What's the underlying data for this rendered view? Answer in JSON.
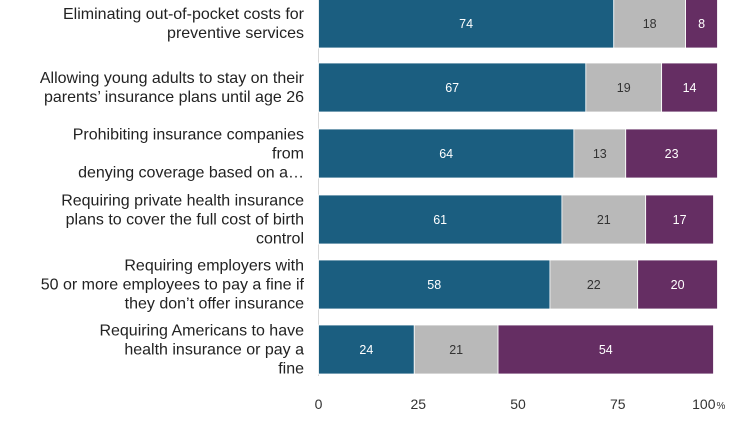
{
  "chart_data": {
    "type": "bar",
    "orientation": "horizontal",
    "stacked": true,
    "categories": [
      [
        "Eliminating out-of-pocket costs for",
        "preventive services"
      ],
      [
        "Allowing young adults to stay on their",
        "parents’ insurance plans until age 26"
      ],
      [
        "Prohibiting insurance companies",
        "from",
        "denying coverage based on a…"
      ],
      [
        "Requiring private health insurance",
        "plans to cover the full cost of birth",
        "control"
      ],
      [
        "Requiring employers with",
        "50 or more employees to pay a fine if",
        "they don’t offer insurance"
      ],
      [
        "Requiring Americans to have",
        "health insurance or pay a",
        "fine"
      ]
    ],
    "series": [
      {
        "values": [
          74,
          67,
          64,
          61,
          58,
          24
        ]
      },
      {
        "values": [
          18,
          19,
          13,
          21,
          22,
          21
        ]
      },
      {
        "values": [
          8,
          14,
          23,
          17,
          20,
          54
        ]
      }
    ],
    "colors": [
      "#1b5e80",
      "#b9b9b9",
      "#652e63"
    ],
    "label_colors": [
      "#ffffff",
      "#333333",
      "#ffffff"
    ],
    "x_ticks": [
      "0",
      "25",
      "50",
      "75",
      "100"
    ],
    "x_unit": "%",
    "xlim": [
      0,
      100
    ],
    "grid": false,
    "legend": "none"
  }
}
